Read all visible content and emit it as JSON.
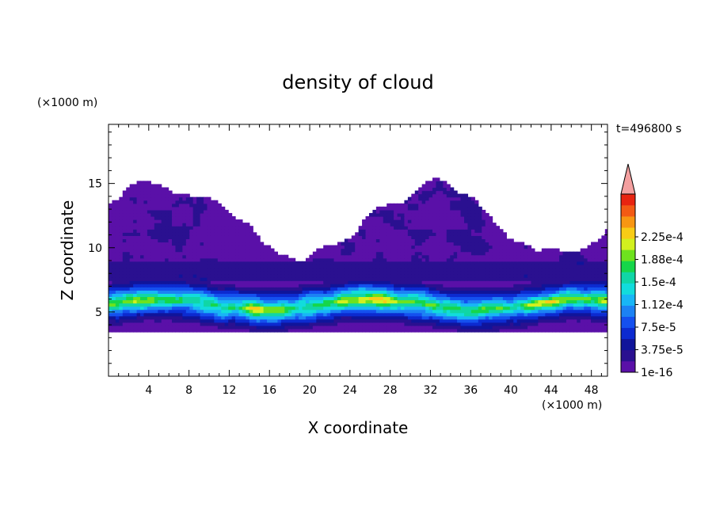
{
  "chart_data": {
    "type": "heatmap",
    "title": "density of cloud",
    "xlabel": "X coordinate",
    "ylabel": "Z coordinate",
    "x_unit": "(×1000 m)",
    "y_unit": "(×1000 m)",
    "time_label": "t=496800 s",
    "xlim": [
      0,
      49.6
    ],
    "ylim": [
      0,
      19.6
    ],
    "x_ticks": [
      4,
      8,
      12,
      16,
      20,
      24,
      28,
      32,
      36,
      40,
      44,
      48
    ],
    "y_ticks": [
      5,
      10,
      15
    ],
    "colorbar": {
      "labels": [
        "1e-16",
        "3.75e-5",
        "7.5e-5",
        "1.12e-4",
        "1.5e-4",
        "1.88e-4",
        "2.25e-4"
      ],
      "levels": 16,
      "extend": "max",
      "colors": [
        "#5a10a8",
        "#2a1090",
        "#10149a",
        "#0c2ad0",
        "#1450ef",
        "#1c82f4",
        "#18b6f6",
        "#12dcdc",
        "#10d6a6",
        "#16d64a",
        "#6ee21e",
        "#d2f01e",
        "#f8cc16",
        "#f89612",
        "#f35a14",
        "#e82410"
      ],
      "extend_color": "#f4a0a0"
    },
    "cloud_layer": {
      "base_z": 3.5,
      "dense_core_z": [
        4.5,
        7.0
      ],
      "top_z_range": [
        11.0,
        16.5
      ]
    }
  }
}
